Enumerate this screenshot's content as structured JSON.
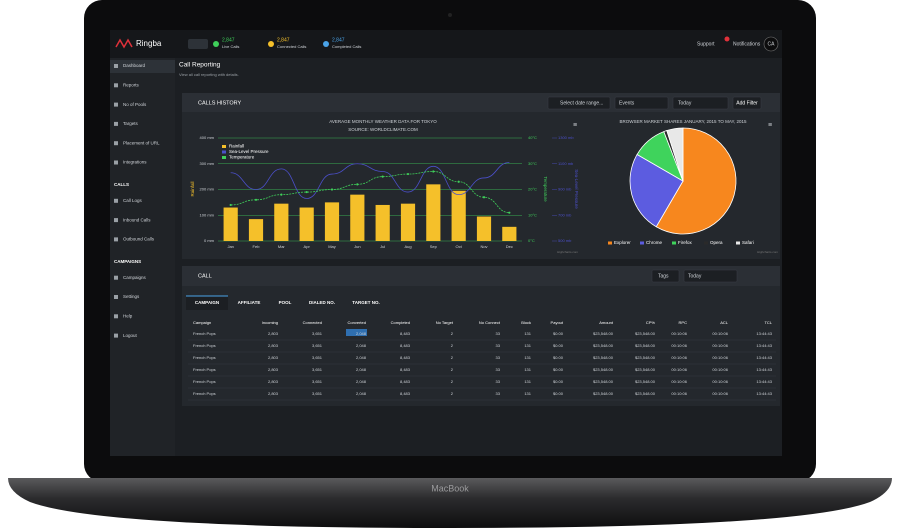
{
  "app": {
    "logo": "Ringba",
    "stats": [
      {
        "value": "2,847",
        "label": "Live Calls"
      },
      {
        "value": "2,847",
        "label": "Connected Calls"
      },
      {
        "value": "2,847",
        "label": "Completed Calls"
      }
    ],
    "support": "Support",
    "notifications": "Notifications",
    "avatar": "CA"
  },
  "sidebar": {
    "groups": [
      {
        "items": [
          "Dashboard",
          "Reports",
          "No of Pools",
          "Targets",
          "Placement of URL",
          "Integrations"
        ]
      },
      {
        "title": "CALLS",
        "items": [
          "Call Logs",
          "Inbound Calls",
          "Outbound Calls"
        ]
      },
      {
        "title": "CAMPAIGNS",
        "items": [
          "Campaigns",
          "Settings",
          "Help",
          "Logout"
        ]
      }
    ]
  },
  "page": {
    "title": "Call Reporting",
    "subtitle": "View all call reporting with details."
  },
  "calls_history": {
    "title": "CALLS  HISTORY",
    "date_range": "Select date range...",
    "events": "Events",
    "period": "Today",
    "add_filter": "Add Filter"
  },
  "chart_data": [
    {
      "type": "combo",
      "title": "AVERAGE MONTHLY WEATHER DATA FOR TOKYO",
      "subtitle": "SOURCE: WORLDCLIMATE.COM",
      "categories": [
        "Jan",
        "Feb",
        "Mar",
        "Apr",
        "May",
        "Jun",
        "Jul",
        "Aug",
        "Sep",
        "Oct",
        "Nov",
        "Dec"
      ],
      "series": [
        {
          "name": "Rainfall",
          "type": "bar",
          "color": "#f5c02a",
          "values": [
            130,
            85,
            145,
            130,
            150,
            180,
            140,
            145,
            220,
            195,
            95,
            55
          ]
        },
        {
          "name": "Sea-Level Pressure",
          "type": "line",
          "axis": "y3",
          "color": "#4b4fc9",
          "values": [
            1030,
            900,
            1060,
            830,
            1020,
            1100,
            1040,
            880,
            1080,
            860,
            990,
            1110
          ]
        },
        {
          "name": "Temperature",
          "type": "line",
          "axis": "y2",
          "color": "#3fcf5a",
          "values": [
            14,
            16,
            18,
            19,
            20,
            22,
            25,
            26,
            27,
            23,
            17,
            11
          ]
        }
      ],
      "ylabel": "Rainfall",
      "y2label": "Temperature",
      "y3label": "Sea-Level Pressure",
      "ylim": [
        0,
        400
      ],
      "yticks": [
        {
          "value": 0,
          "label": "0 mm"
        },
        {
          "value": 100,
          "label": "100 mm"
        },
        {
          "value": 200,
          "label": "200 mm"
        },
        {
          "value": 300,
          "label": "300 mm"
        },
        {
          "value": 400,
          "label": "400 mm"
        }
      ],
      "y2lim": [
        0,
        40
      ],
      "y2ticks": [
        {
          "value": 0,
          "label": "0°C"
        },
        {
          "value": 10,
          "label": "10°C"
        },
        {
          "value": 20,
          "label": "20°C"
        },
        {
          "value": 30,
          "label": "30°C"
        },
        {
          "value": 40,
          "label": "40°C"
        }
      ],
      "y3lim": [
        500,
        1300
      ],
      "y3ticks": [
        {
          "value": 500,
          "label": "500 mb"
        },
        {
          "value": 700,
          "label": "700 mb"
        },
        {
          "value": 900,
          "label": "900 mb"
        },
        {
          "value": 1100,
          "label": "1100 mb"
        },
        {
          "value": 1300,
          "label": "1300 mb"
        }
      ],
      "grid": true,
      "credits": "Highcharts.com"
    },
    {
      "type": "pie",
      "title": "BROWSER MARKET SHARES JANUARY, 2015 TO MAY, 2015",
      "categories": [
        "Explorer",
        "Chrome",
        "Firefox",
        "Opera",
        "Safari"
      ],
      "values": [
        56.33,
        24.03,
        10.38,
        0.91,
        4.77
      ],
      "colors": [
        "#f7871e",
        "#5c5ce0",
        "#3fd35c",
        "#2a2a2a",
        "#e8e8e8"
      ],
      "credits": "Highcharts.com"
    }
  ],
  "call": {
    "title": "CALL",
    "tags": "Tags",
    "period": "Today",
    "tabs": [
      "CAMPAIGN",
      "AFFILIATE",
      "POOL",
      "DIALED NO.",
      "TARGET NO."
    ],
    "table": {
      "columns": [
        "Campaign",
        "Incoming",
        "Connected",
        "Converted",
        "Completed",
        "No Target",
        "No Connect",
        "Block",
        "Payout",
        "Amount",
        "CP%",
        "RPC",
        "ACL",
        "TCL"
      ],
      "rows": [
        [
          "French Pops",
          "2,803",
          "3,651",
          "2,048",
          "8,483",
          "2",
          "33",
          "131",
          "$0.00",
          "$23,548.00",
          "$23,548.00",
          "00:10:06",
          "00:10:06",
          "13:44:43"
        ],
        [
          "French Pops",
          "2,803",
          "3,651",
          "2,048",
          "8,483",
          "2",
          "33",
          "131",
          "$0.00",
          "$23,548.00",
          "$23,548.00",
          "00:10:06",
          "00:10:06",
          "13:44:43"
        ],
        [
          "French Pops",
          "2,803",
          "3,651",
          "2,048",
          "8,483",
          "2",
          "33",
          "131",
          "$0.00",
          "$23,548.00",
          "$23,548.00",
          "00:10:06",
          "00:10:06",
          "13:44:43"
        ],
        [
          "French Pops",
          "2,803",
          "3,651",
          "2,048",
          "8,483",
          "2",
          "33",
          "131",
          "$0.00",
          "$23,548.00",
          "$23,548.00",
          "00:10:06",
          "00:10:06",
          "13:44:43"
        ],
        [
          "French Pops",
          "2,803",
          "3,651",
          "2,048",
          "8,483",
          "2",
          "33",
          "131",
          "$0.00",
          "$23,548.00",
          "$23,548.00",
          "00:10:06",
          "00:10:06",
          "13:44:43"
        ],
        [
          "French Pops",
          "2,803",
          "3,651",
          "2,048",
          "8,483",
          "2",
          "33",
          "131",
          "$0.00",
          "$23,548.00",
          "$23,548.00",
          "00:10:06",
          "00:10:06",
          "13:44:43"
        ]
      ]
    }
  },
  "device": "MacBook"
}
